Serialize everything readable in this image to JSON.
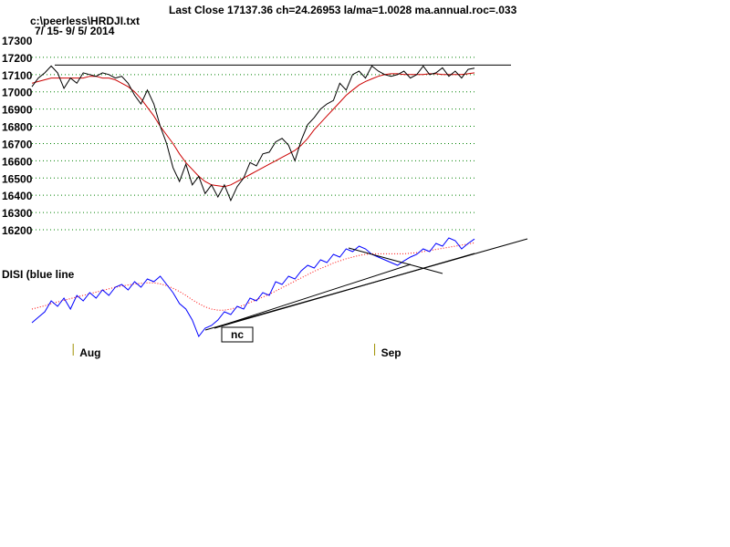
{
  "header": {
    "title": "Last Close 17137.36 ch=24.26953  la/ma=1.0028 ma.annual.roc=.033",
    "file": "c:\\peerless\\HRDJI.txt",
    "daterange": "7/ 15- 9/ 5/ 2014"
  },
  "disi_label": "DISI (blue line",
  "annotation": "nc",
  "month_labels": [
    "Aug",
    "Sep"
  ],
  "colors": {
    "price": "#000000",
    "ma": "#cc0000",
    "disi": "#0000ff",
    "disi_ma": "#ff0000",
    "grid": "#008000",
    "month_tick": "#a09000"
  },
  "chart_data": [
    {
      "type": "line",
      "title": "Last Close 17137.36 ch=24.26953  la/ma=1.0028 ma.annual.roc=.033",
      "ylim": [
        16150,
        17300
      ],
      "yticks": [
        16200,
        16300,
        16400,
        16500,
        16600,
        16700,
        16800,
        16900,
        17000,
        17100,
        17200,
        17300
      ],
      "grid": true,
      "x_labels": [
        {
          "label": "Aug",
          "index": 7
        },
        {
          "label": "Sep",
          "index": 54
        }
      ],
      "series": [
        {
          "values": [
            17030,
            17080,
            17110,
            17150,
            17110,
            17020,
            17080,
            17050,
            17110,
            17100,
            17090,
            17110,
            17100,
            17080,
            17090,
            17050,
            16980,
            16930,
            17010,
            16930,
            16800,
            16700,
            16560,
            16480,
            16580,
            16460,
            16510,
            16410,
            16460,
            16390,
            16460,
            16370,
            16450,
            16500,
            16590,
            16570,
            16640,
            16650,
            16710,
            16730,
            16690,
            16600,
            16720,
            16810,
            16850,
            16900,
            16930,
            16950,
            17050,
            17010,
            17100,
            17120,
            17080,
            17150,
            17120,
            17100,
            17090,
            17100,
            17120,
            17080,
            17100,
            17150,
            17100,
            17110,
            17140,
            17090,
            17120,
            17080,
            17130,
            17137
          ]
        },
        {
          "values": [
            17050,
            17060,
            17070,
            17080,
            17080,
            17080,
            17080,
            17080,
            17080,
            17090,
            17090,
            17080,
            17080,
            17070,
            17050,
            17030,
            17000,
            16960,
            16910,
            16860,
            16800,
            16750,
            16700,
            16640,
            16590,
            16550,
            16510,
            16480,
            16460,
            16455,
            16450,
            16460,
            16480,
            16500,
            16520,
            16540,
            16560,
            16580,
            16600,
            16620,
            16640,
            16660,
            16690,
            16730,
            16780,
            16820,
            16860,
            16900,
            16940,
            16980,
            17010,
            17040,
            17060,
            17075,
            17090,
            17100,
            17105,
            17105,
            17100,
            17100,
            17100,
            17100,
            17105,
            17105,
            17100,
            17100,
            17100,
            17100,
            17105,
            17110
          ]
        }
      ],
      "reference_lines": [
        {
          "value": 17150,
          "from_index": 0,
          "to_index": 69
        }
      ]
    },
    {
      "type": "line",
      "title": "DISI (blue line",
      "series": [
        {
          "values": [
            15,
            25,
            35,
            55,
            45,
            60,
            40,
            65,
            55,
            70,
            60,
            75,
            65,
            80,
            85,
            75,
            90,
            80,
            95,
            90,
            100,
            85,
            70,
            50,
            40,
            20,
            -10,
            5,
            10,
            20,
            35,
            30,
            45,
            40,
            60,
            55,
            70,
            65,
            90,
            85,
            100,
            95,
            110,
            120,
            115,
            130,
            125,
            140,
            135,
            150,
            145,
            155,
            150,
            140,
            135,
            130,
            125,
            120,
            128,
            135,
            140,
            150,
            145,
            160,
            155,
            170,
            165,
            150,
            160,
            168
          ]
        },
        {
          "values": [
            40,
            43,
            46,
            50,
            53,
            56,
            59,
            62,
            65,
            68,
            71,
            74,
            77,
            80,
            82,
            84,
            86,
            87,
            88,
            88,
            86,
            83,
            78,
            72,
            65,
            57,
            50,
            44,
            40,
            38,
            38,
            40,
            43,
            47,
            52,
            57,
            62,
            67,
            73,
            79,
            85,
            91,
            97,
            103,
            109,
            114,
            119,
            124,
            128,
            132,
            135,
            138,
            140,
            141,
            141,
            141,
            141,
            141,
            141,
            142,
            143,
            145,
            147,
            149,
            151,
            153,
            155,
            157,
            159,
            161
          ]
        }
      ]
    }
  ]
}
